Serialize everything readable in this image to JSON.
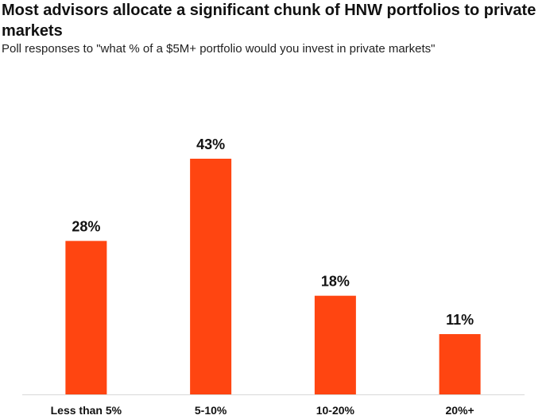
{
  "header": {
    "title": "Most advisors allocate a significant chunk of HNW portfolios to private markets",
    "subtitle": "Poll responses to \"what % of a $5M+ portfolio would you invest in private markets\""
  },
  "chart_data": {
    "type": "bar",
    "categories": [
      "Less than 5%",
      "5-10%",
      "10-20%",
      "20%+"
    ],
    "values": [
      28,
      43,
      18,
      11
    ],
    "value_labels": [
      "28%",
      "43%",
      "18%",
      "11%"
    ],
    "title": "Most advisors allocate a significant chunk of HNW portfolios to private markets",
    "subtitle": "Poll responses to \"what % of a $5M+ portfolio would you invest in private markets\"",
    "xlabel": "",
    "ylabel": "",
    "ylim": [
      0,
      43
    ],
    "grid": false,
    "legend": "none",
    "bar_color": "#FF4511"
  }
}
